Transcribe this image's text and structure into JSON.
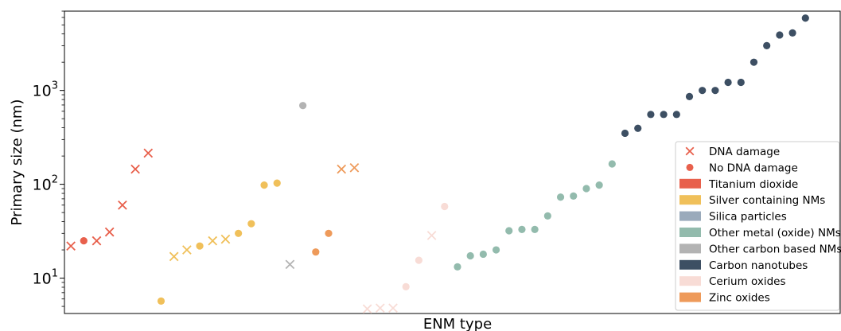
{
  "chart_data": {
    "type": "scatter",
    "title": "",
    "xlabel": "ENM type",
    "ylabel": "Primary size (nm)",
    "yscale": "log",
    "ylim": [
      4.2,
      7000
    ],
    "xlim": [
      -0.5,
      59.7
    ],
    "yticks": [
      {
        "base": "10",
        "exp": "1",
        "value": 10
      },
      {
        "base": "10",
        "exp": "2",
        "value": 100
      },
      {
        "base": "10",
        "exp": "3",
        "value": 1000
      }
    ],
    "grid": false,
    "legend_position": "lower-right",
    "markers": {
      "dna_damage": "x",
      "no_dna_damage": "circle"
    },
    "categories": [
      {
        "name": "Titanium dioxide",
        "color": "#E8604C"
      },
      {
        "name": "Silver containing NMs",
        "color": "#F0C05A"
      },
      {
        "name": "Silica particles",
        "color": "#9AAABB"
      },
      {
        "name": "Other metal (oxide) NMs",
        "color": "#93BBAD"
      },
      {
        "name": "Other carbon based NMs",
        "color": "#B3B3B3"
      },
      {
        "name": "Carbon nanotubes",
        "color": "#3D4F63"
      },
      {
        "name": "Cerium oxides",
        "color": "#F8DCD6"
      },
      {
        "name": "Zinc oxides",
        "color": "#EE9A5A"
      }
    ],
    "points": [
      {
        "x": 0,
        "y": 22,
        "category": "Titanium dioxide",
        "damage": true
      },
      {
        "x": 1,
        "y": 25,
        "category": "Titanium dioxide",
        "damage": false
      },
      {
        "x": 2,
        "y": 25,
        "category": "Titanium dioxide",
        "damage": true
      },
      {
        "x": 3,
        "y": 31,
        "category": "Titanium dioxide",
        "damage": true
      },
      {
        "x": 4,
        "y": 60,
        "category": "Titanium dioxide",
        "damage": true
      },
      {
        "x": 5,
        "y": 145,
        "category": "Titanium dioxide",
        "damage": true
      },
      {
        "x": 6,
        "y": 215,
        "category": "Titanium dioxide",
        "damage": true
      },
      {
        "x": 7,
        "y": 5.7,
        "category": "Silver containing NMs",
        "damage": false
      },
      {
        "x": 8,
        "y": 17,
        "category": "Silver containing NMs",
        "damage": true
      },
      {
        "x": 9,
        "y": 20,
        "category": "Silver containing NMs",
        "damage": true
      },
      {
        "x": 10,
        "y": 22,
        "category": "Silver containing NMs",
        "damage": false
      },
      {
        "x": 11,
        "y": 25,
        "category": "Silver containing NMs",
        "damage": true
      },
      {
        "x": 12,
        "y": 26,
        "category": "Silver containing NMs",
        "damage": true
      },
      {
        "x": 13,
        "y": 30,
        "category": "Silver containing NMs",
        "damage": false
      },
      {
        "x": 14,
        "y": 38,
        "category": "Silver containing NMs",
        "damage": false
      },
      {
        "x": 15,
        "y": 98,
        "category": "Silver containing NMs",
        "damage": false
      },
      {
        "x": 16,
        "y": 103,
        "category": "Silver containing NMs",
        "damage": false
      },
      {
        "x": 17,
        "y": 14,
        "category": "Other carbon based NMs",
        "damage": true
      },
      {
        "x": 18,
        "y": 690,
        "category": "Other carbon based NMs",
        "damage": false
      },
      {
        "x": 19,
        "y": 19,
        "category": "Zinc oxides",
        "damage": false
      },
      {
        "x": 20,
        "y": 30,
        "category": "Zinc oxides",
        "damage": false
      },
      {
        "x": 21,
        "y": 145,
        "category": "Zinc oxides",
        "damage": true
      },
      {
        "x": 22,
        "y": 150,
        "category": "Zinc oxides",
        "damage": true
      },
      {
        "x": 23,
        "y": 4.7,
        "category": "Cerium oxides",
        "damage": true
      },
      {
        "x": 24,
        "y": 4.8,
        "category": "Cerium oxides",
        "damage": true
      },
      {
        "x": 25,
        "y": 4.8,
        "category": "Cerium oxides",
        "damage": true
      },
      {
        "x": 26,
        "y": 8.1,
        "category": "Cerium oxides",
        "damage": false
      },
      {
        "x": 27,
        "y": 15.5,
        "category": "Cerium oxides",
        "damage": false
      },
      {
        "x": 28,
        "y": 28.5,
        "category": "Cerium oxides",
        "damage": true
      },
      {
        "x": 29,
        "y": 58,
        "category": "Cerium oxides",
        "damage": false
      },
      {
        "x": 30,
        "y": 13.2,
        "category": "Other metal (oxide) NMs",
        "damage": false
      },
      {
        "x": 31,
        "y": 17.3,
        "category": "Other metal (oxide) NMs",
        "damage": false
      },
      {
        "x": 32,
        "y": 18,
        "category": "Other metal (oxide) NMs",
        "damage": false
      },
      {
        "x": 33,
        "y": 20,
        "category": "Other metal (oxide) NMs",
        "damage": false
      },
      {
        "x": 34,
        "y": 32,
        "category": "Other metal (oxide) NMs",
        "damage": false
      },
      {
        "x": 35,
        "y": 33,
        "category": "Other metal (oxide) NMs",
        "damage": false
      },
      {
        "x": 36,
        "y": 33,
        "category": "Other metal (oxide) NMs",
        "damage": false
      },
      {
        "x": 37,
        "y": 46,
        "category": "Other metal (oxide) NMs",
        "damage": false
      },
      {
        "x": 38,
        "y": 73,
        "category": "Other metal (oxide) NMs",
        "damage": false
      },
      {
        "x": 39,
        "y": 75,
        "category": "Other metal (oxide) NMs",
        "damage": false
      },
      {
        "x": 40,
        "y": 90,
        "category": "Other metal (oxide) NMs",
        "damage": false
      },
      {
        "x": 41,
        "y": 98,
        "category": "Other metal (oxide) NMs",
        "damage": false
      },
      {
        "x": 42,
        "y": 165,
        "category": "Other metal (oxide) NMs",
        "damage": false
      },
      {
        "x": 43,
        "y": 350,
        "category": "Carbon nanotubes",
        "damage": false
      },
      {
        "x": 44,
        "y": 395,
        "category": "Carbon nanotubes",
        "damage": false
      },
      {
        "x": 45,
        "y": 555,
        "category": "Carbon nanotubes",
        "damage": false
      },
      {
        "x": 46,
        "y": 555,
        "category": "Carbon nanotubes",
        "damage": false
      },
      {
        "x": 47,
        "y": 555,
        "category": "Carbon nanotubes",
        "damage": false
      },
      {
        "x": 48,
        "y": 860,
        "category": "Carbon nanotubes",
        "damage": false
      },
      {
        "x": 49,
        "y": 1000,
        "category": "Carbon nanotubes",
        "damage": false
      },
      {
        "x": 50,
        "y": 1000,
        "category": "Carbon nanotubes",
        "damage": false
      },
      {
        "x": 51,
        "y": 1220,
        "category": "Carbon nanotubes",
        "damage": false
      },
      {
        "x": 52,
        "y": 1220,
        "category": "Carbon nanotubes",
        "damage": false
      },
      {
        "x": 53,
        "y": 2000,
        "category": "Carbon nanotubes",
        "damage": false
      },
      {
        "x": 54,
        "y": 3000,
        "category": "Carbon nanotubes",
        "damage": false
      },
      {
        "x": 55,
        "y": 3900,
        "category": "Carbon nanotubes",
        "damage": false
      },
      {
        "x": 56,
        "y": 4100,
        "category": "Carbon nanotubes",
        "damage": false
      },
      {
        "x": 57,
        "y": 5900,
        "category": "Carbon nanotubes",
        "damage": false
      }
    ],
    "legend": [
      {
        "label": "DNA damage",
        "kind": "x",
        "color": "#E8604C"
      },
      {
        "label": "No DNA damage",
        "kind": "circle",
        "color": "#E8604C"
      },
      {
        "label": "Titanium dioxide",
        "kind": "patch",
        "color": "#E8604C"
      },
      {
        "label": "Silver containing NMs",
        "kind": "patch",
        "color": "#F0C05A"
      },
      {
        "label": "Silica particles",
        "kind": "patch",
        "color": "#9AAABB"
      },
      {
        "label": "Other metal (oxide) NMs",
        "kind": "patch",
        "color": "#93BBAD"
      },
      {
        "label": "Other carbon based NMs",
        "kind": "patch",
        "color": "#B3B3B3"
      },
      {
        "label": "Carbon nanotubes",
        "kind": "patch",
        "color": "#3D4F63"
      },
      {
        "label": "Cerium oxides",
        "kind": "patch",
        "color": "#F8DCD6"
      },
      {
        "label": "Zinc oxides",
        "kind": "patch",
        "color": "#EE9A5A"
      }
    ]
  }
}
